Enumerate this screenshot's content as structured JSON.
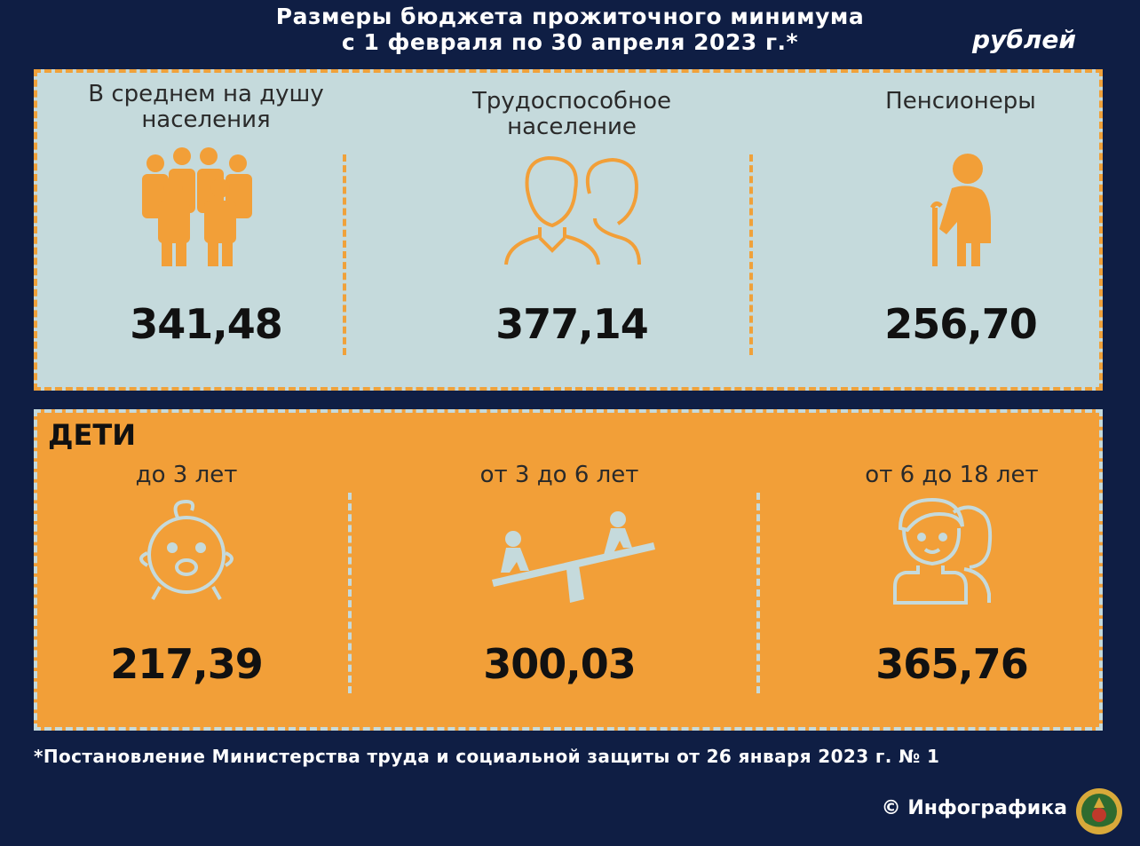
{
  "header": {
    "title_line1": "Размеры бюджета прожиточного минимума",
    "title_line2": "с 1 февраля по 30 апреля 2023 г.*",
    "unit": "рублей"
  },
  "adults": [
    {
      "label_line1": "В среднем на душу",
      "label_line2": "населения",
      "value": "341,48",
      "icon": "people-group-icon"
    },
    {
      "label_line1": "Трудоспособное",
      "label_line2": "население",
      "value": "377,14",
      "icon": "man-woman-icon"
    },
    {
      "label_line1": "Пенсионеры",
      "label_line2": "",
      "value": "256,70",
      "icon": "elderly-person-icon"
    }
  ],
  "children": {
    "title": "ДЕТИ",
    "items": [
      {
        "label": "до 3 лет",
        "value": "217,39",
        "icon": "baby-face-icon"
      },
      {
        "label": "от 3 до 6 лет",
        "value": "300,03",
        "icon": "seesaw-kids-icon"
      },
      {
        "label": "от 6 до 18 лет",
        "value": "365,76",
        "icon": "teenagers-icon"
      }
    ]
  },
  "footer": {
    "footnote": "*Постановление Министерства труда и социальной защиты от 26 января 2023 г. № 1",
    "credit": "© Инфографика"
  },
  "colors": {
    "background": "#0f1e44",
    "light_panel": "#c5dadc",
    "orange": "#f29f38"
  }
}
